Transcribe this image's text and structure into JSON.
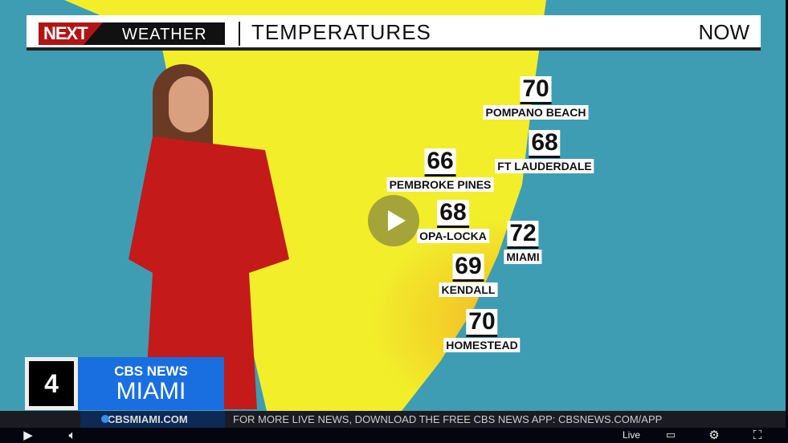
{
  "banner": {
    "logo": "NEXT WEATHER",
    "logo_next": "NEXT",
    "logo_weather": "WEATHER",
    "title": "TEMPERATURES",
    "time": "NOW"
  },
  "cities": [
    {
      "temp": "70",
      "name": "POMPANO BEACH"
    },
    {
      "temp": "68",
      "name": "FT LAUDERDALE"
    },
    {
      "temp": "66",
      "name": "PEMBROKE PINES"
    },
    {
      "temp": "68",
      "name": "OPA-LOCKA"
    },
    {
      "temp": "72",
      "name": "MIAMI"
    },
    {
      "temp": "69",
      "name": "KENDALL"
    },
    {
      "temp": "70",
      "name": "HOMESTEAD"
    }
  ],
  "station": {
    "channel": "4",
    "network": "CBS NEWS",
    "city": "MIAMI"
  },
  "ticker": {
    "site": "CBSMIAMI.COM",
    "message": "FOR MORE LIVE NEWS, DOWNLOAD THE FREE CBS NEWS APP: CBSNEWS.COM/APP"
  },
  "controls": {
    "live_label": "Live",
    "icons": [
      "play-icon",
      "volume-icon",
      "captions-icon",
      "gear-icon",
      "fullscreen-icon"
    ]
  },
  "colors": {
    "water": "#3f9db3",
    "land": "#f2ee2a",
    "accent": "#1a6fe0",
    "logo_red": "#b01515"
  }
}
